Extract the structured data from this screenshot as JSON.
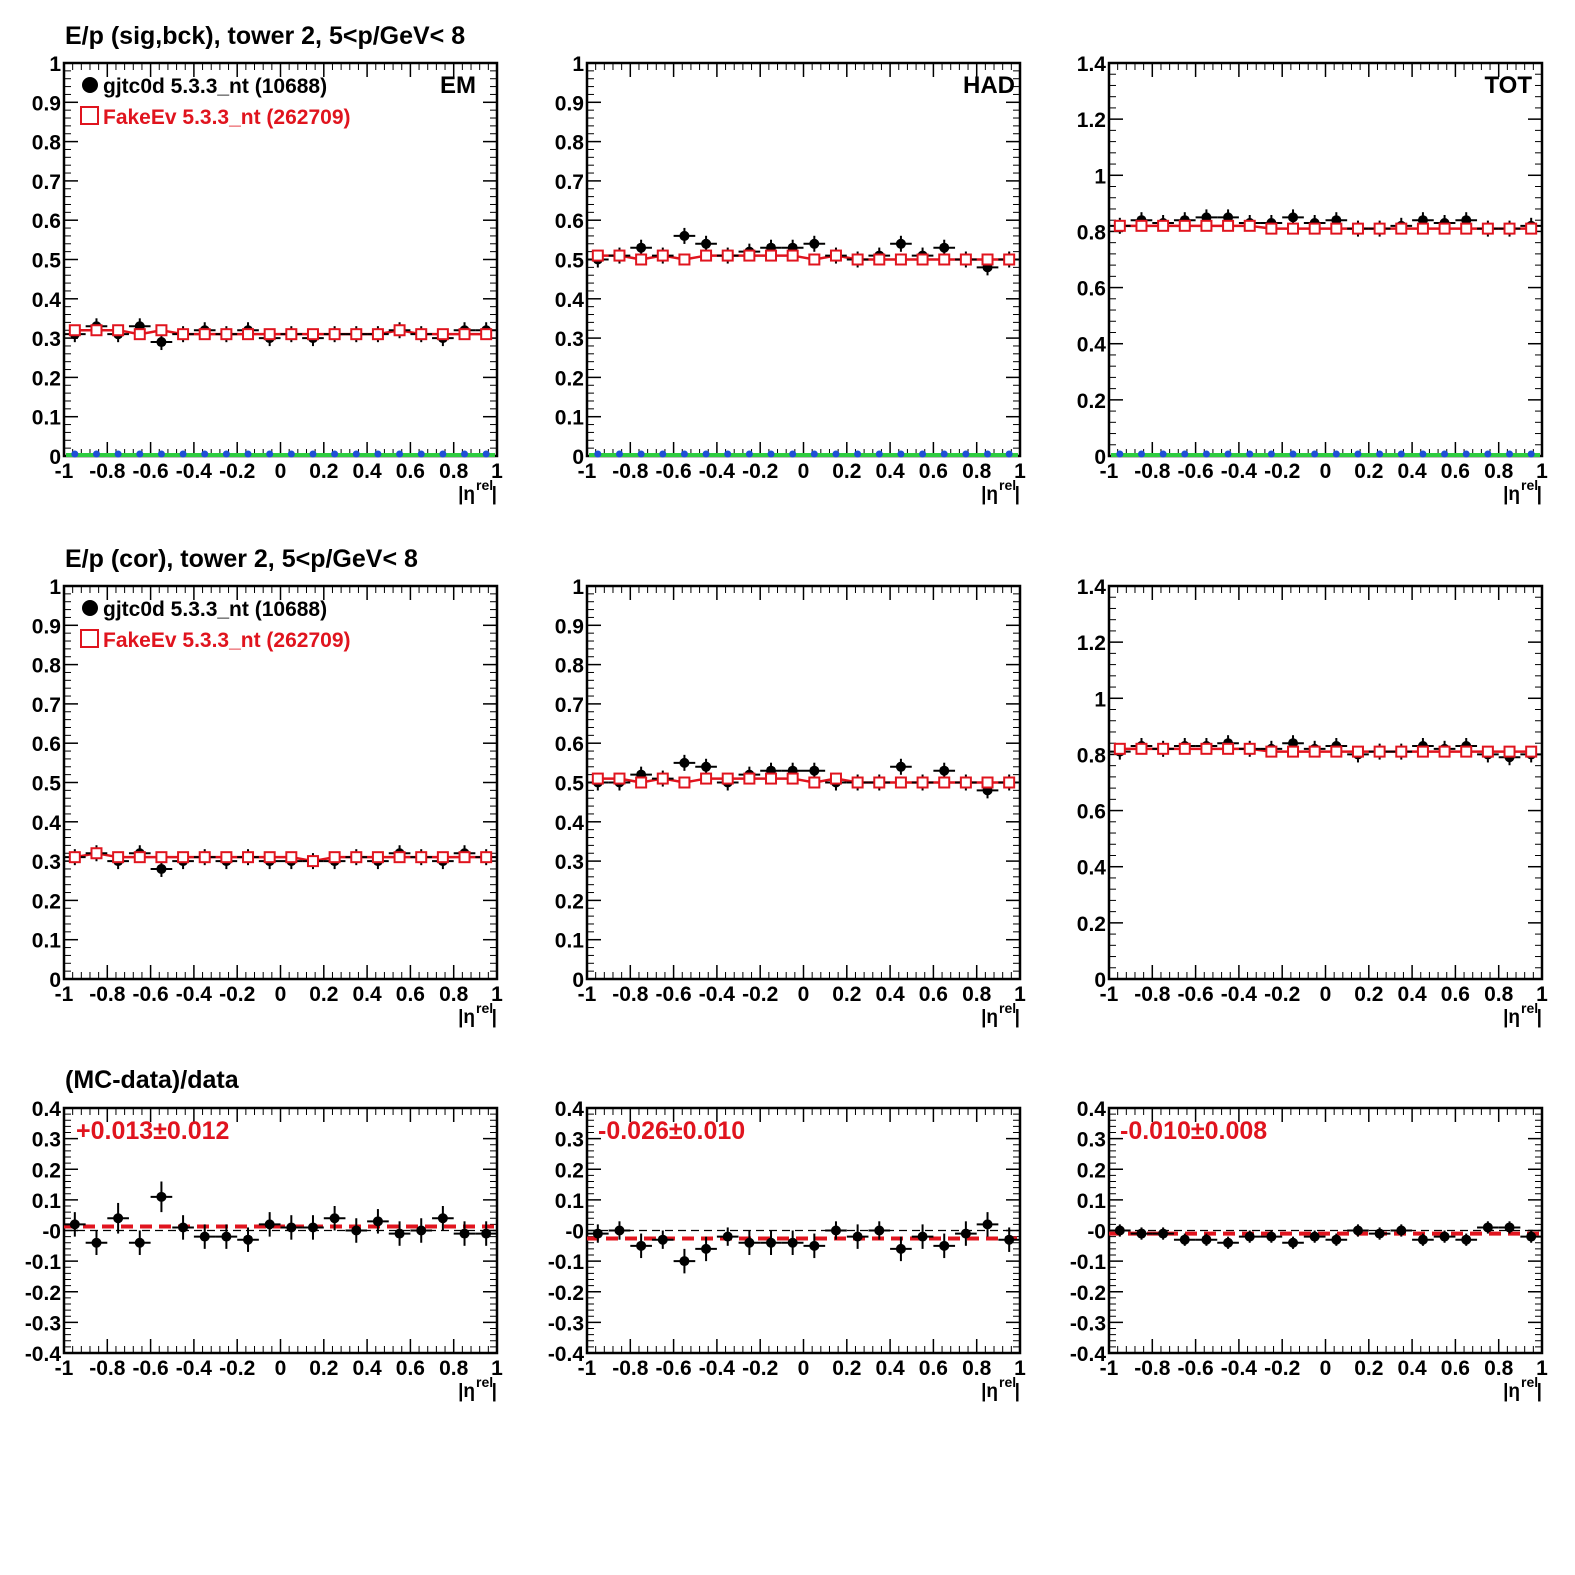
{
  "figure": {
    "row_titles": [
      "E/p (sig,bck), tower 2,  5<p/GeV< 8",
      "E/p (cor), tower 2,  5<p/GeV< 8",
      "(MC-data)/data"
    ],
    "xlabel_main": "|η",
    "xlabel_sup": "rel",
    "xlabel_end": "|",
    "legend": [
      {
        "label": "gjtc0d 5.3.3_nt (10688)",
        "color": "#000000",
        "marker": "filled-circle"
      },
      {
        "label": "FakeEv 5.3.3_nt (262709)",
        "color": "#e0141e",
        "marker": "open-square"
      }
    ],
    "panel_labels": [
      "EM",
      "HAD",
      "TOT"
    ],
    "ratio_fits": [
      "+0.013±0.012",
      "-0.026±0.010",
      "-0.010±0.008"
    ],
    "colors": {
      "data": "#000000",
      "mc": "#e0141e",
      "bkg_green": "#2ecc40",
      "bkg_blue": "#1f4fd6",
      "fit_line": "#e0141e"
    }
  },
  "chart_data": [
    {
      "type": "scatter",
      "id": "em_sigbck",
      "xlim": [
        -1,
        1
      ],
      "ylim": [
        0,
        1
      ],
      "xticks": [
        -1,
        -0.8,
        -0.6,
        -0.4,
        -0.2,
        0,
        0.2,
        0.4,
        0.6,
        0.8,
        1
      ],
      "yticks": [
        0,
        0.1,
        0.2,
        0.3,
        0.4,
        0.5,
        0.6,
        0.7,
        0.8,
        0.9,
        1
      ],
      "x": [
        -0.95,
        -0.85,
        -0.75,
        -0.65,
        -0.55,
        -0.45,
        -0.35,
        -0.25,
        -0.15,
        -0.05,
        0.05,
        0.15,
        0.25,
        0.35,
        0.45,
        0.55,
        0.65,
        0.75,
        0.85,
        0.95
      ],
      "series": [
        {
          "name": "gjtc0d 5.3.3_nt (10688)",
          "values": [
            0.31,
            0.33,
            0.31,
            0.33,
            0.29,
            0.31,
            0.32,
            0.31,
            0.32,
            0.3,
            0.31,
            0.3,
            0.31,
            0.31,
            0.31,
            0.32,
            0.31,
            0.3,
            0.32,
            0.32
          ]
        },
        {
          "name": "FakeEv 5.3.3_nt (262709)",
          "values": [
            0.32,
            0.32,
            0.32,
            0.31,
            0.32,
            0.31,
            0.31,
            0.31,
            0.31,
            0.31,
            0.31,
            0.31,
            0.31,
            0.31,
            0.31,
            0.32,
            0.31,
            0.31,
            0.31,
            0.31
          ]
        },
        {
          "values": [
            0,
            0,
            0,
            0,
            0,
            0,
            0,
            0,
            0,
            0,
            0,
            0,
            0,
            0,
            0,
            0,
            0,
            0,
            0,
            0
          ]
        }
      ]
    },
    {
      "type": "scatter",
      "id": "had_sigbck",
      "xlim": [
        -1,
        1
      ],
      "ylim": [
        0,
        1
      ],
      "xticks": [
        -1,
        -0.8,
        -0.6,
        -0.4,
        -0.2,
        0,
        0.2,
        0.4,
        0.6,
        0.8,
        1
      ],
      "yticks": [
        0,
        0.1,
        0.2,
        0.3,
        0.4,
        0.5,
        0.6,
        0.7,
        0.8,
        0.9,
        1
      ],
      "x": [
        -0.95,
        -0.85,
        -0.75,
        -0.65,
        -0.55,
        -0.45,
        -0.35,
        -0.25,
        -0.15,
        -0.05,
        0.05,
        0.15,
        0.25,
        0.35,
        0.45,
        0.55,
        0.65,
        0.75,
        0.85,
        0.95
      ],
      "series": [
        {
          "name": "gjtc0d 5.3.3_nt (10688)",
          "values": [
            0.5,
            0.51,
            0.53,
            0.51,
            0.56,
            0.54,
            0.51,
            0.52,
            0.53,
            0.53,
            0.54,
            0.51,
            0.5,
            0.51,
            0.54,
            0.51,
            0.53,
            0.5,
            0.48,
            0.5
          ]
        },
        {
          "name": "FakeEv 5.3.3_nt (262709)",
          "values": [
            0.51,
            0.51,
            0.5,
            0.51,
            0.5,
            0.51,
            0.51,
            0.51,
            0.51,
            0.51,
            0.5,
            0.51,
            0.5,
            0.5,
            0.5,
            0.5,
            0.5,
            0.5,
            0.5,
            0.5
          ]
        },
        {
          "values": [
            0,
            0,
            0,
            0,
            0,
            0,
            0,
            0,
            0,
            0,
            0,
            0,
            0,
            0,
            0,
            0,
            0,
            0,
            0,
            0
          ]
        }
      ]
    },
    {
      "type": "scatter",
      "id": "tot_sigbck",
      "xlim": [
        -1,
        1
      ],
      "ylim": [
        0,
        1.4
      ],
      "xticks": [
        -1,
        -0.8,
        -0.6,
        -0.4,
        -0.2,
        0,
        0.2,
        0.4,
        0.6,
        0.8,
        1
      ],
      "yticks": [
        0,
        0.2,
        0.4,
        0.6,
        0.8,
        1,
        1.2,
        1.4
      ],
      "x": [
        -0.95,
        -0.85,
        -0.75,
        -0.65,
        -0.55,
        -0.45,
        -0.35,
        -0.25,
        -0.15,
        -0.05,
        0.05,
        0.15,
        0.25,
        0.35,
        0.45,
        0.55,
        0.65,
        0.75,
        0.85,
        0.95
      ],
      "series": [
        {
          "name": "gjtc0d 5.3.3_nt (10688)",
          "values": [
            0.82,
            0.84,
            0.83,
            0.84,
            0.85,
            0.85,
            0.83,
            0.83,
            0.85,
            0.83,
            0.84,
            0.81,
            0.81,
            0.82,
            0.84,
            0.83,
            0.84,
            0.81,
            0.81,
            0.82
          ]
        },
        {
          "name": "FakeEv 5.3.3_nt (262709)",
          "values": [
            0.82,
            0.82,
            0.82,
            0.82,
            0.82,
            0.82,
            0.82,
            0.81,
            0.81,
            0.81,
            0.81,
            0.81,
            0.81,
            0.81,
            0.81,
            0.81,
            0.81,
            0.81,
            0.81,
            0.81
          ]
        },
        {
          "values": [
            0,
            0,
            0,
            0,
            0,
            0,
            0,
            0,
            0,
            0,
            0,
            0,
            0,
            0,
            0,
            0,
            0,
            0,
            0,
            0
          ]
        }
      ]
    },
    {
      "type": "scatter",
      "id": "em_cor",
      "xlim": [
        -1,
        1
      ],
      "ylim": [
        0,
        1
      ],
      "xticks": [
        -1,
        -0.8,
        -0.6,
        -0.4,
        -0.2,
        0,
        0.2,
        0.4,
        0.6,
        0.8,
        1
      ],
      "yticks": [
        0,
        0.1,
        0.2,
        0.3,
        0.4,
        0.5,
        0.6,
        0.7,
        0.8,
        0.9,
        1
      ],
      "x": [
        -0.95,
        -0.85,
        -0.75,
        -0.65,
        -0.55,
        -0.45,
        -0.35,
        -0.25,
        -0.15,
        -0.05,
        0.05,
        0.15,
        0.25,
        0.35,
        0.45,
        0.55,
        0.65,
        0.75,
        0.85,
        0.95
      ],
      "series": [
        {
          "name": "gjtc0d 5.3.3_nt (10688)",
          "values": [
            0.31,
            0.32,
            0.3,
            0.32,
            0.28,
            0.3,
            0.31,
            0.3,
            0.31,
            0.3,
            0.3,
            0.3,
            0.3,
            0.31,
            0.3,
            0.32,
            0.31,
            0.3,
            0.32,
            0.31
          ]
        },
        {
          "name": "FakeEv 5.3.3_nt (262709)",
          "values": [
            0.31,
            0.32,
            0.31,
            0.31,
            0.31,
            0.31,
            0.31,
            0.31,
            0.31,
            0.31,
            0.31,
            0.3,
            0.31,
            0.31,
            0.31,
            0.31,
            0.31,
            0.31,
            0.31,
            0.31
          ]
        }
      ]
    },
    {
      "type": "scatter",
      "id": "had_cor",
      "xlim": [
        -1,
        1
      ],
      "ylim": [
        0,
        1
      ],
      "xticks": [
        -1,
        -0.8,
        -0.6,
        -0.4,
        -0.2,
        0,
        0.2,
        0.4,
        0.6,
        0.8,
        1
      ],
      "yticks": [
        0,
        0.1,
        0.2,
        0.3,
        0.4,
        0.5,
        0.6,
        0.7,
        0.8,
        0.9,
        1
      ],
      "x": [
        -0.95,
        -0.85,
        -0.75,
        -0.65,
        -0.55,
        -0.45,
        -0.35,
        -0.25,
        -0.15,
        -0.05,
        0.05,
        0.15,
        0.25,
        0.35,
        0.45,
        0.55,
        0.65,
        0.75,
        0.85,
        0.95
      ],
      "series": [
        {
          "name": "gjtc0d 5.3.3_nt (10688)",
          "values": [
            0.5,
            0.5,
            0.52,
            0.51,
            0.55,
            0.54,
            0.5,
            0.52,
            0.53,
            0.53,
            0.53,
            0.5,
            0.5,
            0.5,
            0.54,
            0.5,
            0.53,
            0.5,
            0.48,
            0.5
          ]
        },
        {
          "name": "FakeEv 5.3.3_nt (262709)",
          "values": [
            0.51,
            0.51,
            0.5,
            0.51,
            0.5,
            0.51,
            0.51,
            0.51,
            0.51,
            0.51,
            0.5,
            0.51,
            0.5,
            0.5,
            0.5,
            0.5,
            0.5,
            0.5,
            0.5,
            0.5
          ]
        }
      ]
    },
    {
      "type": "scatter",
      "id": "tot_cor",
      "xlim": [
        -1,
        1
      ],
      "ylim": [
        0,
        1.4
      ],
      "xticks": [
        -1,
        -0.8,
        -0.6,
        -0.4,
        -0.2,
        0,
        0.2,
        0.4,
        0.6,
        0.8,
        1
      ],
      "yticks": [
        0,
        0.2,
        0.4,
        0.6,
        0.8,
        1,
        1.2,
        1.4
      ],
      "x": [
        -0.95,
        -0.85,
        -0.75,
        -0.65,
        -0.55,
        -0.45,
        -0.35,
        -0.25,
        -0.15,
        -0.05,
        0.05,
        0.15,
        0.25,
        0.35,
        0.45,
        0.55,
        0.65,
        0.75,
        0.85,
        0.95
      ],
      "series": [
        {
          "name": "gjtc0d 5.3.3_nt (10688)",
          "values": [
            0.81,
            0.83,
            0.82,
            0.83,
            0.83,
            0.84,
            0.82,
            0.82,
            0.84,
            0.82,
            0.83,
            0.8,
            0.81,
            0.81,
            0.83,
            0.82,
            0.83,
            0.8,
            0.79,
            0.8
          ]
        },
        {
          "name": "FakeEv 5.3.3_nt (262709)",
          "values": [
            0.82,
            0.82,
            0.82,
            0.82,
            0.82,
            0.82,
            0.82,
            0.81,
            0.81,
            0.81,
            0.81,
            0.81,
            0.81,
            0.81,
            0.81,
            0.81,
            0.81,
            0.81,
            0.81,
            0.81
          ]
        }
      ]
    },
    {
      "type": "scatter",
      "id": "em_ratio",
      "xlim": [
        -1,
        1
      ],
      "ylim": [
        -0.4,
        0.4
      ],
      "xticks": [
        -1,
        -0.8,
        -0.6,
        -0.4,
        -0.2,
        0,
        0.2,
        0.4,
        0.6,
        0.8,
        1
      ],
      "yticks": [
        -0.4,
        -0.3,
        -0.2,
        -0.1,
        0,
        0.1,
        0.2,
        0.3,
        0.4
      ],
      "ytick_labels": [
        "-0.4",
        "-0.3",
        "-0.2",
        "-0.1",
        "-0",
        "0.1",
        "0.2",
        "0.3",
        "0.4"
      ],
      "x": [
        -0.95,
        -0.85,
        -0.75,
        -0.65,
        -0.55,
        -0.45,
        -0.35,
        -0.25,
        -0.15,
        -0.05,
        0.05,
        0.15,
        0.25,
        0.35,
        0.45,
        0.55,
        0.65,
        0.75,
        0.85,
        0.95
      ],
      "series": [
        {
          "name": "gjtc0d 5.3.3_nt (10688)",
          "values": [
            0.02,
            -0.04,
            0.04,
            -0.04,
            0.11,
            0.01,
            -0.02,
            -0.02,
            -0.03,
            0.02,
            0.01,
            0.01,
            0.04,
            0,
            0.03,
            -0.01,
            0,
            0.04,
            -0.01,
            -0.01
          ],
          "errors": [
            0.04,
            0.04,
            0.05,
            0.04,
            0.05,
            0.04,
            0.04,
            0.04,
            0.04,
            0.04,
            0.04,
            0.04,
            0.04,
            0.04,
            0.04,
            0.04,
            0.04,
            0.04,
            0.04,
            0.04
          ]
        }
      ],
      "fit": 0.013
    },
    {
      "type": "scatter",
      "id": "had_ratio",
      "xlim": [
        -1,
        1
      ],
      "ylim": [
        -0.4,
        0.4
      ],
      "xticks": [
        -1,
        -0.8,
        -0.6,
        -0.4,
        -0.2,
        0,
        0.2,
        0.4,
        0.6,
        0.8,
        1
      ],
      "yticks": [
        -0.4,
        -0.3,
        -0.2,
        -0.1,
        0,
        0.1,
        0.2,
        0.3,
        0.4
      ],
      "ytick_labels": [
        "-0.4",
        "-0.3",
        "-0.2",
        "-0.1",
        "-0",
        "0.1",
        "0.2",
        "0.3",
        "0.4"
      ],
      "x": [
        -0.95,
        -0.85,
        -0.75,
        -0.65,
        -0.55,
        -0.45,
        -0.35,
        -0.25,
        -0.15,
        -0.05,
        0.05,
        0.15,
        0.25,
        0.35,
        0.45,
        0.55,
        0.65,
        0.75,
        0.85,
        0.95
      ],
      "series": [
        {
          "name": "gjtc0d 5.3.3_nt (10688)",
          "values": [
            -0.01,
            0,
            -0.05,
            -0.03,
            -0.1,
            -0.06,
            -0.02,
            -0.04,
            -0.04,
            -0.04,
            -0.05,
            0,
            -0.02,
            0,
            -0.06,
            -0.02,
            -0.05,
            -0.01,
            0.02,
            -0.03
          ],
          "errors": [
            0.03,
            0.03,
            0.04,
            0.03,
            0.04,
            0.04,
            0.03,
            0.04,
            0.04,
            0.04,
            0.04,
            0.03,
            0.04,
            0.03,
            0.04,
            0.04,
            0.04,
            0.04,
            0.04,
            0.04
          ]
        }
      ],
      "fit": -0.026
    },
    {
      "type": "scatter",
      "id": "tot_ratio",
      "xlim": [
        -1,
        1
      ],
      "ylim": [
        -0.4,
        0.4
      ],
      "xticks": [
        -1,
        -0.8,
        -0.6,
        -0.4,
        -0.2,
        0,
        0.2,
        0.4,
        0.6,
        0.8,
        1
      ],
      "yticks": [
        -0.4,
        -0.3,
        -0.2,
        -0.1,
        0,
        0.1,
        0.2,
        0.3,
        0.4
      ],
      "ytick_labels": [
        "-0.4",
        "-0.3",
        "-0.2",
        "-0.1",
        "-0",
        "0.1",
        "0.2",
        "0.3",
        "0.4"
      ],
      "x": [
        -0.95,
        -0.85,
        -0.75,
        -0.65,
        -0.55,
        -0.45,
        -0.35,
        -0.25,
        -0.15,
        -0.05,
        0.05,
        0.15,
        0.25,
        0.35,
        0.45,
        0.55,
        0.65,
        0.75,
        0.85,
        0.95
      ],
      "series": [
        {
          "name": "gjtc0d 5.3.3_nt (10688)",
          "values": [
            0,
            -0.01,
            -0.01,
            -0.03,
            -0.03,
            -0.04,
            -0.02,
            -0.02,
            -0.04,
            -0.02,
            -0.03,
            0,
            -0.01,
            0,
            -0.03,
            -0.02,
            -0.03,
            0.01,
            0.01,
            -0.02
          ],
          "errors": [
            0.02,
            0.02,
            0.02,
            0.02,
            0.02,
            0.02,
            0.02,
            0.02,
            0.02,
            0.02,
            0.02,
            0.02,
            0.02,
            0.02,
            0.02,
            0.02,
            0.02,
            0.02,
            0.02,
            0.02
          ]
        }
      ],
      "fit": -0.01
    }
  ]
}
